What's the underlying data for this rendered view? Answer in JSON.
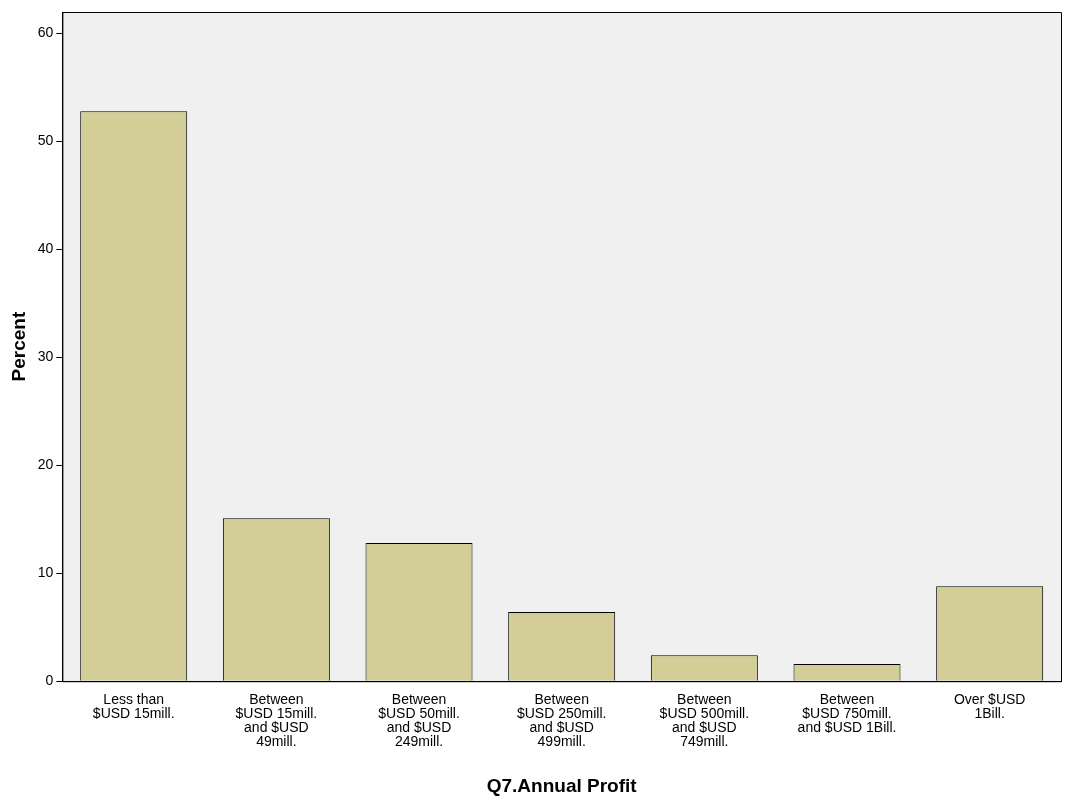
{
  "chart_data": {
    "type": "bar",
    "xlabel": "Q7.Annual Profit",
    "ylabel": "Percent",
    "categories": [
      "Less than\n$USD 15mill.",
      "Between\n$USD 15mill.\nand $USD\n49mill.",
      "Between\n$USD 50mill.\nand $USD\n249mill.",
      "Between\n$USD 250mill.\nand $USD\n499mill.",
      "Between\n$USD 500mill.\nand $USD\n749mill.",
      "Between\n$USD 750mill.\nand $USD 1Bill.",
      "Over $USD\n1Bill."
    ],
    "values": [
      52.8,
      15.1,
      12.8,
      6.4,
      2.4,
      1.6,
      8.8
    ],
    "color": "#d3ce97",
    "ylim": [
      0,
      62
    ],
    "yticks": [
      0,
      10,
      20,
      30,
      40,
      50,
      60
    ],
    "grid": false,
    "legend": false
  }
}
